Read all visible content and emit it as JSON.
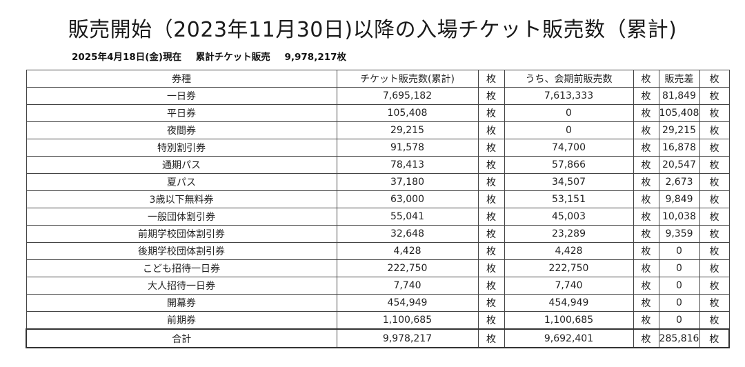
{
  "title": "販売開始（2023年11月30日)以降の入場チケット販売数（累計)",
  "subtitle": {
    "date": "2025年4月18日(金)現在",
    "label": "累計チケット販売",
    "value": "9,978,217枚"
  },
  "table": {
    "headers": [
      "券種",
      "チケット販売数(累計)",
      "枚",
      "うち、会期前販売数",
      "枚",
      "販売差",
      "枚"
    ],
    "rows": [
      {
        "type": "一日券",
        "total": "7,695,182",
        "u1": "枚",
        "pre": "7,613,333",
        "u2": "枚",
        "diff": "81,849",
        "u3": "枚"
      },
      {
        "type": "平日券",
        "total": "105,408",
        "u1": "枚",
        "pre": "0",
        "u2": "枚",
        "diff": "105,408",
        "u3": "枚"
      },
      {
        "type": "夜間券",
        "total": "29,215",
        "u1": "枚",
        "pre": "0",
        "u2": "枚",
        "diff": "29,215",
        "u3": "枚"
      },
      {
        "type": "特別割引券",
        "total": "91,578",
        "u1": "枚",
        "pre": "74,700",
        "u2": "枚",
        "diff": "16,878",
        "u3": "枚"
      },
      {
        "type": "通期パス",
        "total": "78,413",
        "u1": "枚",
        "pre": "57,866",
        "u2": "枚",
        "diff": "20,547",
        "u3": "枚"
      },
      {
        "type": "夏パス",
        "total": "37,180",
        "u1": "枚",
        "pre": "34,507",
        "u2": "枚",
        "diff": "2,673",
        "u3": "枚"
      },
      {
        "type": "3歳以下無料券",
        "total": "63,000",
        "u1": "枚",
        "pre": "53,151",
        "u2": "枚",
        "diff": "9,849",
        "u3": "枚"
      },
      {
        "type": "一般団体割引券",
        "total": "55,041",
        "u1": "枚",
        "pre": "45,003",
        "u2": "枚",
        "diff": "10,038",
        "u3": "枚"
      },
      {
        "type": "前期学校団体割引券",
        "total": "32,648",
        "u1": "枚",
        "pre": "23,289",
        "u2": "枚",
        "diff": "9,359",
        "u3": "枚"
      },
      {
        "type": "後期学校団体割引券",
        "total": "4,428",
        "u1": "枚",
        "pre": "4,428",
        "u2": "枚",
        "diff": "0",
        "u3": "枚"
      },
      {
        "type": "こども招待一日券",
        "total": "222,750",
        "u1": "枚",
        "pre": "222,750",
        "u2": "枚",
        "diff": "0",
        "u3": "枚"
      },
      {
        "type": "大人招待一日券",
        "total": "7,740",
        "u1": "枚",
        "pre": "7,740",
        "u2": "枚",
        "diff": "0",
        "u3": "枚"
      },
      {
        "type": "開幕券",
        "total": "454,949",
        "u1": "枚",
        "pre": "454,949",
        "u2": "枚",
        "diff": "0",
        "u3": "枚"
      },
      {
        "type": "前期券",
        "total": "1,100,685",
        "u1": "枚",
        "pre": "1,100,685",
        "u2": "枚",
        "diff": "0",
        "u3": "枚"
      }
    ],
    "total_row": {
      "type": "合計",
      "total": "9,978,217",
      "u1": "枚",
      "pre": "9,692,401",
      "u2": "枚",
      "diff": "285,816",
      "u3": "枚"
    }
  }
}
